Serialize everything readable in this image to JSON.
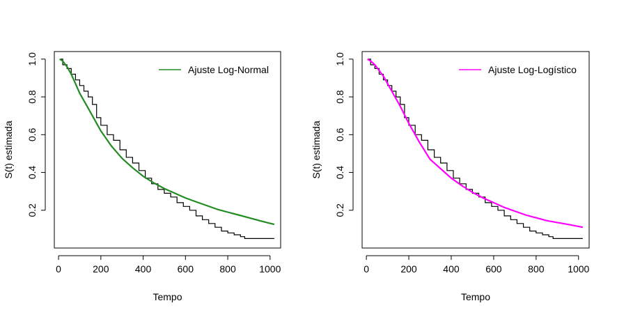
{
  "chart_data": [
    {
      "type": "line",
      "xlabel": "Tempo",
      "ylabel": "S(t) estimada",
      "xlim": [
        -20,
        1050
      ],
      "ylim": [
        0.0,
        1.04
      ],
      "xticks": [
        0,
        200,
        400,
        600,
        800,
        1000
      ],
      "xtick_labels": [
        "0",
        "200",
        "400",
        "600",
        "800",
        "1000"
      ],
      "yticks": [
        0.2,
        0.4,
        0.6,
        0.8,
        1.0
      ],
      "ytick_labels": [
        "0.2",
        "0.4",
        "0.6",
        "0.8",
        "1.0"
      ],
      "legend": {
        "position": "top-right",
        "entries": [
          {
            "label": "Ajuste Log-Normal",
            "color": "#228B22"
          }
        ]
      },
      "grid": false,
      "series": [
        {
          "style": "step",
          "color": "#000000",
          "x": [
            10,
            20,
            40,
            60,
            80,
            100,
            120,
            140,
            160,
            180,
            200,
            230,
            260,
            290,
            320,
            350,
            380,
            410,
            440,
            470,
            500,
            530,
            560,
            590,
            620,
            650,
            680,
            710,
            740,
            770,
            800,
            830,
            860,
            880,
            1020
          ],
          "y": [
            1.0,
            0.97,
            0.95,
            0.92,
            0.89,
            0.86,
            0.83,
            0.8,
            0.76,
            0.69,
            0.65,
            0.6,
            0.57,
            0.52,
            0.48,
            0.45,
            0.41,
            0.37,
            0.34,
            0.31,
            0.29,
            0.27,
            0.24,
            0.22,
            0.2,
            0.17,
            0.15,
            0.13,
            0.11,
            0.09,
            0.08,
            0.07,
            0.06,
            0.05,
            0.05
          ]
        },
        {
          "name": "Ajuste Log-Normal",
          "style": "line",
          "color": "#228B22",
          "x": [
            5,
            20,
            40,
            60,
            80,
            100,
            130,
            160,
            200,
            250,
            300,
            350,
            400,
            450,
            500,
            550,
            600,
            650,
            700,
            750,
            800,
            850,
            900,
            950,
            1020
          ],
          "y": [
            1.0,
            0.99,
            0.96,
            0.92,
            0.87,
            0.82,
            0.76,
            0.7,
            0.62,
            0.54,
            0.475,
            0.425,
            0.38,
            0.345,
            0.315,
            0.29,
            0.265,
            0.245,
            0.225,
            0.205,
            0.19,
            0.175,
            0.16,
            0.145,
            0.125
          ]
        }
      ]
    },
    {
      "type": "line",
      "xlabel": "Tempo",
      "ylabel": "S(t) estimada",
      "xlim": [
        -20,
        1050
      ],
      "ylim": [
        0.0,
        1.04
      ],
      "xticks": [
        0,
        200,
        400,
        600,
        800,
        1000
      ],
      "xtick_labels": [
        "0",
        "200",
        "400",
        "600",
        "800",
        "1000"
      ],
      "yticks": [
        0.2,
        0.4,
        0.6,
        0.8,
        1.0
      ],
      "ytick_labels": [
        "0.2",
        "0.4",
        "0.6",
        "0.8",
        "1.0"
      ],
      "legend": {
        "position": "top-right",
        "entries": [
          {
            "label": "Ajuste Log-Logístico",
            "color": "#FF00FF"
          }
        ]
      },
      "grid": false,
      "series": [
        {
          "style": "step",
          "color": "#000000",
          "x": [
            10,
            20,
            40,
            60,
            80,
            100,
            120,
            140,
            160,
            180,
            200,
            230,
            260,
            290,
            320,
            350,
            380,
            410,
            440,
            470,
            500,
            530,
            560,
            590,
            620,
            650,
            680,
            710,
            740,
            770,
            800,
            830,
            860,
            880,
            1020
          ],
          "y": [
            1.0,
            0.97,
            0.95,
            0.92,
            0.89,
            0.86,
            0.83,
            0.8,
            0.76,
            0.69,
            0.65,
            0.6,
            0.57,
            0.52,
            0.48,
            0.45,
            0.41,
            0.37,
            0.34,
            0.31,
            0.29,
            0.27,
            0.24,
            0.22,
            0.2,
            0.17,
            0.15,
            0.13,
            0.11,
            0.09,
            0.08,
            0.07,
            0.06,
            0.05,
            0.05
          ]
        },
        {
          "name": "Ajuste Log-Logístico",
          "style": "line",
          "color": "#FF00FF",
          "x": [
            5,
            20,
            40,
            60,
            80,
            100,
            130,
            160,
            200,
            250,
            300,
            350,
            400,
            450,
            500,
            550,
            600,
            650,
            700,
            750,
            800,
            850,
            900,
            950,
            1020
          ],
          "y": [
            1.0,
            0.99,
            0.97,
            0.94,
            0.91,
            0.87,
            0.81,
            0.75,
            0.66,
            0.56,
            0.47,
            0.42,
            0.37,
            0.33,
            0.295,
            0.265,
            0.24,
            0.215,
            0.195,
            0.175,
            0.16,
            0.145,
            0.135,
            0.125,
            0.11
          ]
        }
      ]
    }
  ]
}
